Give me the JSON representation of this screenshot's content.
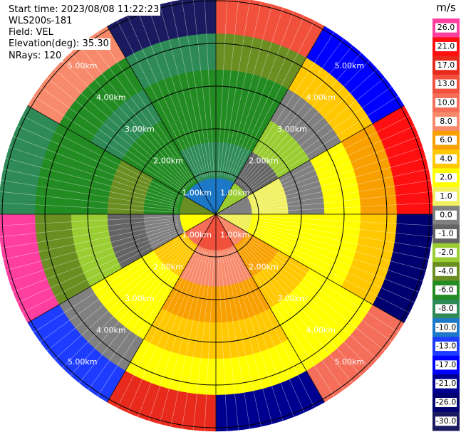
{
  "chart_data": {
    "type": "ppi",
    "info": [
      "Start time: 2023/08/08 11:22:23",
      "WLS200s-181",
      "Field: VEL",
      "Elevation(deg): 35.30",
      "NRays: 120"
    ],
    "unit": "m/s",
    "rings": [
      {
        "value": 1,
        "label": "1.00km"
      },
      {
        "value": 2,
        "label": "2.00km"
      },
      {
        "value": 3,
        "label": "3.00km"
      },
      {
        "value": 4,
        "label": "4.00km"
      },
      {
        "value": 5,
        "label": "5.00km"
      }
    ],
    "colorbar_ticks": [
      {
        "value": 26,
        "label": "26.0"
      },
      {
        "value": 21,
        "label": "21.0"
      },
      {
        "value": 17,
        "label": "17.0"
      },
      {
        "value": 13,
        "label": "13.0"
      },
      {
        "value": 10,
        "label": "10.0"
      },
      {
        "value": 8,
        "label": "8.0"
      },
      {
        "value": 6,
        "label": "6.0"
      },
      {
        "value": 4,
        "label": "4.0"
      },
      {
        "value": 2,
        "label": "2.0"
      },
      {
        "value": 1,
        "label": "1.0"
      },
      {
        "value": 0,
        "label": "0.0"
      },
      {
        "value": -1,
        "label": "-1.0"
      },
      {
        "value": -2,
        "label": "-2.0"
      },
      {
        "value": -4,
        "label": "-4.0"
      },
      {
        "value": -6,
        "label": "-6.0"
      },
      {
        "value": -8,
        "label": "-8.0"
      },
      {
        "value": -10,
        "label": "-10.0"
      },
      {
        "value": -13,
        "label": "-13.0"
      },
      {
        "value": -17,
        "label": "-17.0"
      },
      {
        "value": -21,
        "label": "-21.0"
      },
      {
        "value": -26,
        "label": "-26.0"
      },
      {
        "value": -30,
        "label": "-30.0"
      }
    ],
    "colors": [
      "#ff3fa0",
      "#ff1010",
      "#e82a1c",
      "#f0503c",
      "#f46e5a",
      "#f88a6c",
      "#f8a000",
      "#ffc800",
      "#ffff00",
      "#f0f060",
      "#808080",
      "#646464",
      "#9acd32",
      "#6b8e23",
      "#228b22",
      "#2e8b57",
      "#1e78c8",
      "#1e3cff",
      "#0000ff",
      "#000090",
      "#000070",
      "#1a1a60"
    ],
    "field": [
      [
        -10,
        -8,
        -6,
        -6,
        -4,
        13
      ],
      [
        -2,
        -1,
        -2,
        0,
        4,
        -17
      ],
      [
        0,
        1,
        0,
        2,
        6,
        21
      ],
      [
        1,
        2,
        2,
        2,
        4,
        -26
      ],
      [
        8,
        6,
        4,
        2,
        2,
        10
      ],
      [
        13,
        8,
        6,
        4,
        2,
        -21
      ],
      [
        13,
        8,
        6,
        4,
        2,
        17
      ],
      [
        10,
        4,
        2,
        2,
        0,
        -13
      ],
      [
        2,
        0,
        -1,
        -2,
        -4,
        26
      ],
      [
        -4,
        -6,
        -4,
        -6,
        -6,
        -8
      ],
      [
        -10,
        -6,
        -6,
        -8,
        -6,
        8
      ],
      [
        -10,
        -8,
        -6,
        -6,
        -8,
        -30
      ]
    ]
  }
}
